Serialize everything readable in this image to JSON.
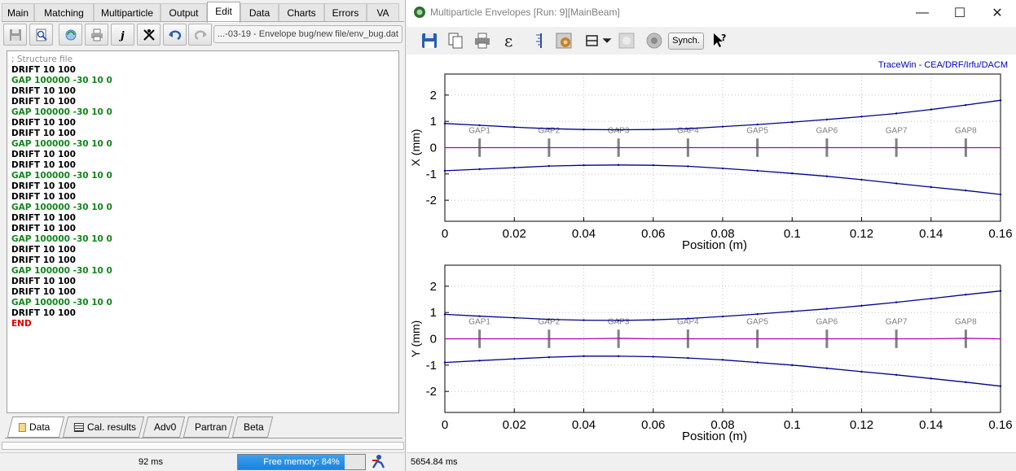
{
  "left_window": {
    "tabs": [
      {
        "label": "Main",
        "active": false
      },
      {
        "label": "Matching",
        "active": false
      },
      {
        "label": "Multiparticle",
        "active": false
      },
      {
        "label": "Output",
        "active": false
      },
      {
        "label": "Edit",
        "active": true
      },
      {
        "label": "Data",
        "active": false
      },
      {
        "label": "Charts",
        "active": false
      },
      {
        "label": "Errors",
        "active": false
      },
      {
        "label": "VA",
        "active": false
      }
    ],
    "toolbar": {
      "icons": [
        "save-icon",
        "find-icon",
        "refresh-icon",
        "print-icon",
        "italic-j-icon",
        "skip-icon",
        "undo-icon",
        "redo-icon"
      ],
      "file_path": "...-03-19 - Envelope bug/new file/env_bug.dat"
    },
    "editor_lines": [
      {
        "text": "; Structure file",
        "kind": "comment"
      },
      {
        "text": "DRIFT 10 100",
        "kind": "drift"
      },
      {
        "text": "GAP 100000 -30 10 0",
        "kind": "gap"
      },
      {
        "text": "DRIFT 10 100",
        "kind": "drift"
      },
      {
        "text": "DRIFT 10 100",
        "kind": "drift"
      },
      {
        "text": "GAP 100000 -30 10 0",
        "kind": "gap"
      },
      {
        "text": "DRIFT 10 100",
        "kind": "drift"
      },
      {
        "text": "DRIFT 10 100",
        "kind": "drift"
      },
      {
        "text": "GAP 100000 -30 10 0",
        "kind": "gap"
      },
      {
        "text": "DRIFT 10 100",
        "kind": "drift"
      },
      {
        "text": "DRIFT 10 100",
        "kind": "drift"
      },
      {
        "text": "GAP 100000 -30 10 0",
        "kind": "gap"
      },
      {
        "text": "DRIFT 10 100",
        "kind": "drift"
      },
      {
        "text": "DRIFT 10 100",
        "kind": "drift"
      },
      {
        "text": "GAP 100000 -30 10 0",
        "kind": "gap"
      },
      {
        "text": "DRIFT 10 100",
        "kind": "drift"
      },
      {
        "text": "DRIFT 10 100",
        "kind": "drift"
      },
      {
        "text": "GAP 100000 -30 10 0",
        "kind": "gap"
      },
      {
        "text": "DRIFT 10 100",
        "kind": "drift"
      },
      {
        "text": "DRIFT 10 100",
        "kind": "drift"
      },
      {
        "text": "GAP 100000 -30 10 0",
        "kind": "gap"
      },
      {
        "text": "DRIFT 10 100",
        "kind": "drift"
      },
      {
        "text": "DRIFT 10 100",
        "kind": "drift"
      },
      {
        "text": "GAP 100000 -30 10 0",
        "kind": "gap"
      },
      {
        "text": "DRIFT 10 100",
        "kind": "drift"
      },
      {
        "text": "END",
        "kind": "end"
      }
    ],
    "bottom_tabs": [
      {
        "label": "Data",
        "icon": "document-icon",
        "active": true
      },
      {
        "label": "Cal. results",
        "icon": "list-icon",
        "active": false
      },
      {
        "label": "Adv0",
        "icon": "",
        "active": false
      },
      {
        "label": "Partran",
        "icon": "",
        "active": false
      },
      {
        "label": "Beta",
        "icon": "",
        "active": false
      }
    ],
    "status": {
      "time": "92 ms",
      "memory_label": "Free memory: 84%",
      "memory_fraction": 0.84
    }
  },
  "right_window": {
    "title": "Multiparticle Envelopes [Run: 9][MainBeam]",
    "controls": {
      "minimize": "—",
      "maximize": "☐",
      "close": "✕"
    },
    "toolbar": {
      "icons": [
        "save-icon",
        "copy-icon",
        "print-icon",
        "epsilon-icon",
        "ruler-icon",
        "settings-icon",
        "layout-icon",
        "dropdown-arrow-icon",
        "blank-square-icon",
        "radio-circle-icon"
      ],
      "synch_label": "Synch.",
      "help_icon": "help-pointer-icon"
    },
    "credit": "TraceWin - CEA/DRF/Irfu/DACM",
    "status_time": "5654.84 ms"
  },
  "colors": {
    "envelope": "#00008b",
    "center": "#b000b0",
    "gap_marker": "#808080",
    "grid": "#c0c0c0",
    "memory_fill": "#1f82db",
    "gap_text": "#11861a",
    "end_text": "#e00000"
  },
  "chart_data": [
    {
      "type": "line",
      "title": "",
      "xlabel": "Position (m)",
      "ylabel": "X (mm)",
      "xlim": [
        0,
        0.16
      ],
      "ylim": [
        -2.8,
        2.8
      ],
      "xticks": [
        "0",
        "0.02",
        "0.04",
        "0.06",
        "0.08",
        "0.1",
        "0.12",
        "0.14",
        "0.16"
      ],
      "yticks": [
        "2",
        "1",
        "0",
        "-1",
        "-2"
      ],
      "grid": true,
      "markers": [
        {
          "label": "GAP1",
          "x": 0.01
        },
        {
          "label": "GAP2",
          "x": 0.03
        },
        {
          "label": "GAP3",
          "x": 0.05
        },
        {
          "label": "GAP4",
          "x": 0.07
        },
        {
          "label": "GAP5",
          "x": 0.09
        },
        {
          "label": "GAP6",
          "x": 0.11
        },
        {
          "label": "GAP7",
          "x": 0.13
        },
        {
          "label": "GAP8",
          "x": 0.15
        }
      ],
      "x": [
        0,
        0.01,
        0.02,
        0.03,
        0.04,
        0.05,
        0.06,
        0.07,
        0.08,
        0.09,
        0.1,
        0.11,
        0.12,
        0.13,
        0.14,
        0.15,
        0.16
      ],
      "series": [
        {
          "values": [
            0.92,
            0.85,
            0.78,
            0.72,
            0.69,
            0.68,
            0.69,
            0.72,
            0.8,
            0.88,
            0.97,
            1.07,
            1.18,
            1.3,
            1.45,
            1.62,
            1.8
          ]
        },
        {
          "values": [
            -0.88,
            -0.82,
            -0.76,
            -0.7,
            -0.67,
            -0.66,
            -0.67,
            -0.71,
            -0.79,
            -0.88,
            -0.98,
            -1.09,
            -1.22,
            -1.36,
            -1.5,
            -1.63,
            -1.78
          ]
        },
        {
          "values": [
            0,
            0,
            0,
            0,
            0,
            0,
            0,
            0,
            0,
            0,
            0,
            0,
            0,
            0,
            0,
            0,
            0
          ]
        }
      ]
    },
    {
      "type": "line",
      "title": "",
      "xlabel": "Position (m)",
      "ylabel": "Y (mm)",
      "xlim": [
        0,
        0.16
      ],
      "ylim": [
        -2.8,
        2.8
      ],
      "xticks": [
        "0",
        "0.02",
        "0.04",
        "0.06",
        "0.08",
        "0.1",
        "0.12",
        "0.14",
        "0.16"
      ],
      "yticks": [
        "2",
        "1",
        "0",
        "-1",
        "-2"
      ],
      "grid": true,
      "markers": [
        {
          "label": "GAP1",
          "x": 0.01
        },
        {
          "label": "GAP2",
          "x": 0.03
        },
        {
          "label": "GAP3",
          "x": 0.05
        },
        {
          "label": "GAP4",
          "x": 0.07
        },
        {
          "label": "GAP5",
          "x": 0.09
        },
        {
          "label": "GAP6",
          "x": 0.11
        },
        {
          "label": "GAP7",
          "x": 0.13
        },
        {
          "label": "GAP8",
          "x": 0.15
        }
      ],
      "x": [
        0,
        0.01,
        0.02,
        0.03,
        0.04,
        0.05,
        0.06,
        0.07,
        0.08,
        0.09,
        0.1,
        0.11,
        0.12,
        0.13,
        0.14,
        0.15,
        0.16
      ],
      "series": [
        {
          "values": [
            0.93,
            0.86,
            0.8,
            0.74,
            0.71,
            0.7,
            0.72,
            0.77,
            0.85,
            0.94,
            1.04,
            1.14,
            1.26,
            1.39,
            1.53,
            1.68,
            1.82
          ]
        },
        {
          "values": [
            -0.9,
            -0.83,
            -0.76,
            -0.7,
            -0.66,
            -0.66,
            -0.68,
            -0.73,
            -0.8,
            -0.9,
            -1.0,
            -1.12,
            -1.25,
            -1.37,
            -1.51,
            -1.65,
            -1.8
          ]
        },
        {
          "values": [
            0,
            0,
            0,
            0,
            0,
            0.02,
            0,
            0,
            0,
            0,
            0,
            0,
            0,
            0,
            0,
            0.02,
            0
          ]
        }
      ]
    }
  ]
}
